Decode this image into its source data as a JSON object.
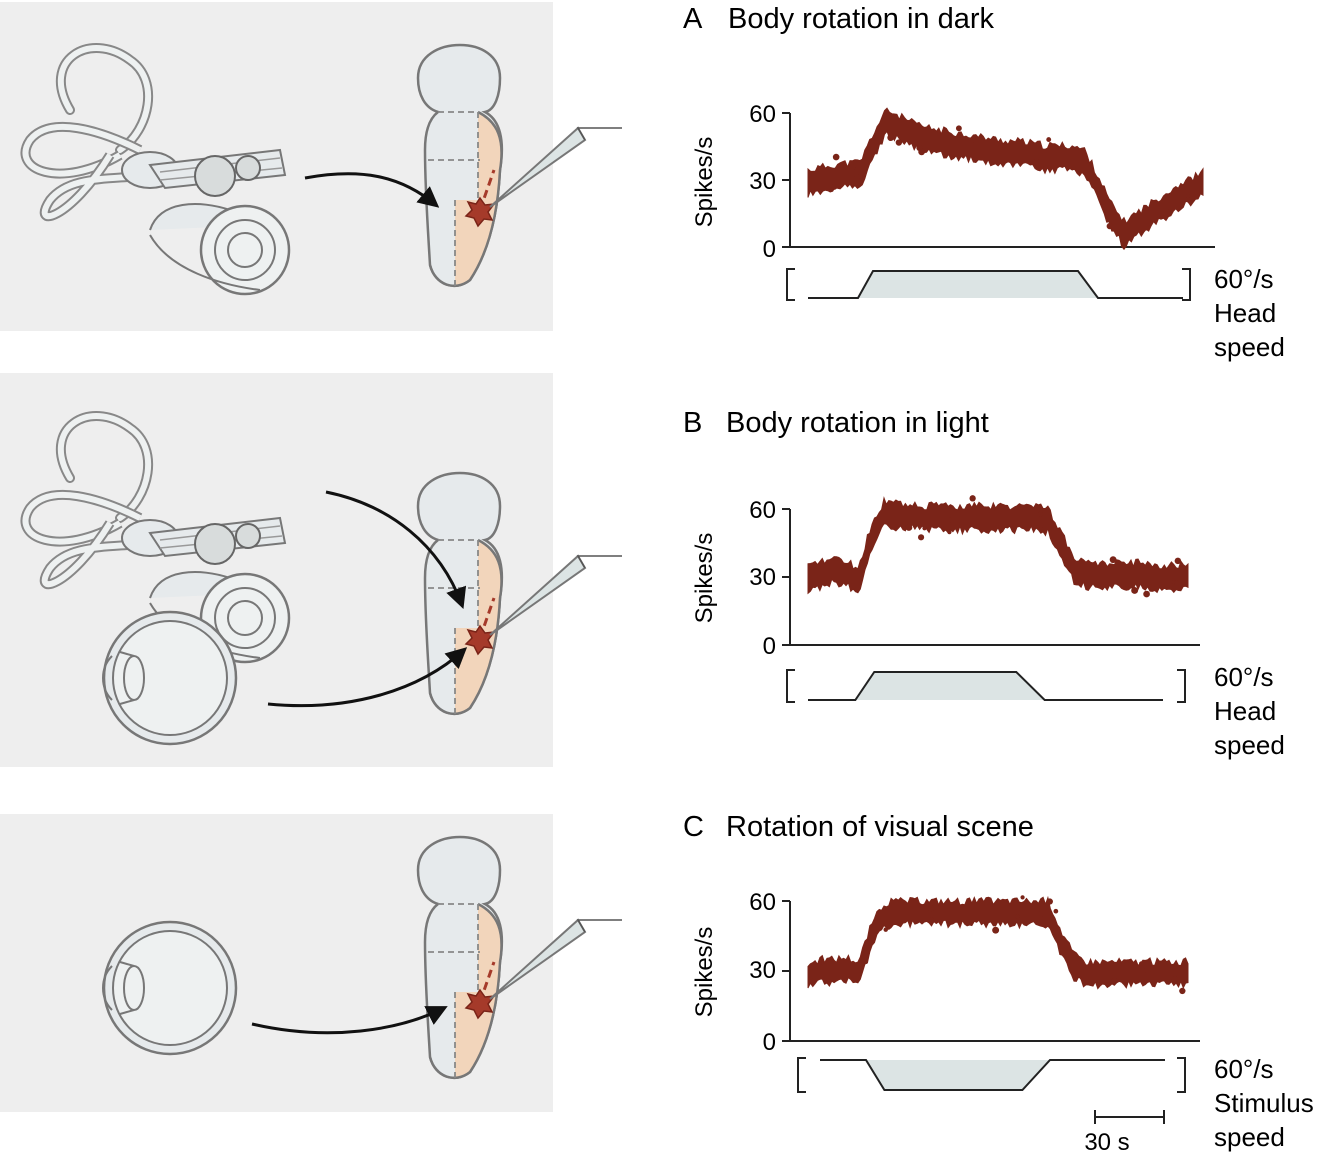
{
  "colors": {
    "background_panel": "#eeeeee",
    "spikes": "#7a2418",
    "stimulus_fill": "#dce4e4",
    "tissue": "#e6eaec",
    "tissue_highlight": "#f2d5bb",
    "neuron": "#a53a2a"
  },
  "panels": [
    {
      "letter": "A",
      "title": "Body rotation in dark",
      "ylabel": "Spikes/s",
      "yticks": [
        "60",
        "30",
        "0"
      ],
      "speed_value": "60°/s",
      "speed_label_1": "Head",
      "speed_label_2": "speed",
      "inputs": [
        "vestibular-organ"
      ]
    },
    {
      "letter": "B",
      "title": "Body rotation in light",
      "ylabel": "Spikes/s",
      "yticks": [
        "60",
        "30",
        "0"
      ],
      "speed_value": "60°/s",
      "speed_label_1": "Head",
      "speed_label_2": "speed",
      "inputs": [
        "vestibular-organ",
        "eye"
      ]
    },
    {
      "letter": "C",
      "title": "Rotation of visual scene",
      "ylabel": "Spikes/s",
      "yticks": [
        "60",
        "30",
        "0"
      ],
      "speed_value": "60°/s",
      "speed_label_1": "Stimulus",
      "speed_label_2": "speed",
      "scale_bar": "30 s",
      "inputs": [
        "eye"
      ]
    }
  ],
  "chart_data": [
    {
      "type": "line",
      "title": "Body rotation in dark",
      "ylabel": "Spikes/s",
      "ylim": [
        0,
        60
      ],
      "x_unit": "s",
      "x": [
        0,
        4,
        8,
        12,
        16,
        20,
        25,
        30,
        35,
        40,
        45,
        50,
        55,
        60,
        65,
        70,
        75,
        80,
        85,
        90,
        95,
        100,
        105,
        110,
        115,
        120,
        125,
        130,
        135,
        140,
        145,
        150
      ],
      "series": [
        {
          "values": [
            29,
            30,
            31,
            32,
            32,
            33,
            46,
            56,
            53,
            50,
            48,
            47,
            46,
            45,
            44,
            43,
            42,
            42,
            41,
            40,
            40,
            40,
            38,
            27,
            14,
            6,
            10,
            14,
            18,
            22,
            25,
            28
          ]
        }
      ],
      "stimulus": {
        "label": "Head speed",
        "value": "60°/s",
        "times": [
          0,
          20,
          26,
          108,
          116,
          150
        ],
        "levels": [
          0,
          0,
          60,
          60,
          0,
          0
        ]
      }
    },
    {
      "type": "line",
      "title": "Body rotation in light",
      "ylabel": "Spikes/s",
      "ylim": [
        0,
        60
      ],
      "x_unit": "s",
      "x": [
        0,
        5,
        10,
        15,
        20,
        25,
        30,
        35,
        40,
        45,
        50,
        55,
        60,
        65,
        70,
        75,
        80,
        85,
        90,
        95,
        100,
        105,
        110,
        115,
        120,
        125,
        130,
        135,
        140,
        145,
        150
      ],
      "series": [
        {
          "values": [
            29,
            31,
            33,
            32,
            28,
            48,
            58,
            57,
            57,
            56,
            56,
            56,
            56,
            56,
            56,
            56,
            56,
            56,
            56,
            55,
            44,
            33,
            31,
            31,
            31,
            31,
            31,
            30,
            30,
            30,
            30
          ]
        }
      ],
      "stimulus": {
        "label": "Head speed",
        "value": "60°/s",
        "times": [
          0,
          20,
          28,
          88,
          100,
          150
        ],
        "levels": [
          0,
          0,
          60,
          60,
          0,
          0
        ]
      }
    },
    {
      "type": "line",
      "title": "Rotation of visual scene",
      "ylabel": "Spikes/s",
      "ylim": [
        0,
        60
      ],
      "x_unit": "s",
      "x": [
        0,
        5,
        10,
        15,
        20,
        25,
        30,
        35,
        40,
        45,
        50,
        55,
        60,
        65,
        70,
        75,
        80,
        85,
        90,
        95,
        100,
        105,
        110,
        115,
        120,
        125,
        130,
        135,
        140,
        145,
        150
      ],
      "series": [
        {
          "values": [
            28,
            30,
            30,
            31,
            29,
            45,
            54,
            55,
            55,
            55,
            55,
            55,
            55,
            55,
            55,
            55,
            55,
            55,
            55,
            55,
            42,
            32,
            29,
            29,
            29,
            29,
            29,
            29,
            29,
            29,
            29
          ]
        }
      ],
      "stimulus": {
        "label": "Stimulus speed",
        "value": "60°/s",
        "times": [
          0,
          20,
          28,
          88,
          100,
          150
        ],
        "levels": [
          0,
          0,
          -60,
          -60,
          0,
          0
        ]
      },
      "scale_bar": {
        "label": "30 s",
        "duration": 30
      }
    }
  ]
}
